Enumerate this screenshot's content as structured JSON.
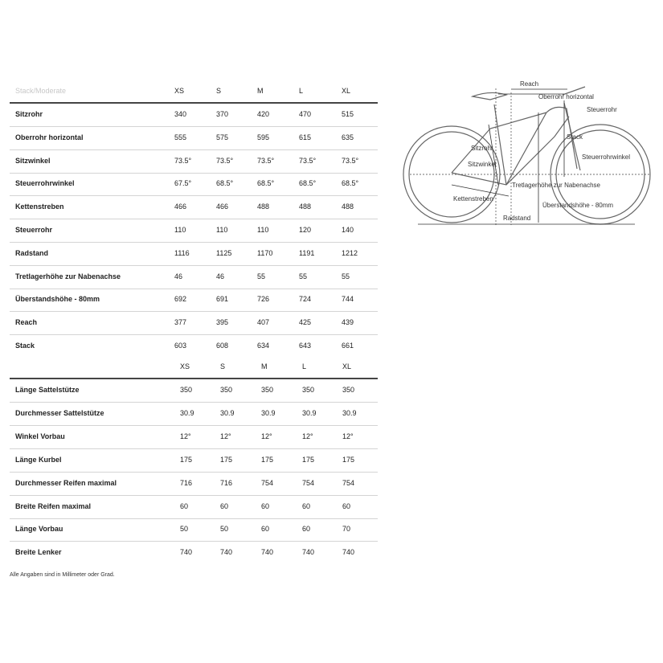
{
  "table1": {
    "corner_label": "Stack/Moderate",
    "sizes": [
      "XS",
      "S",
      "M",
      "L",
      "XL"
    ],
    "rows": [
      {
        "label": "Sitzrohr",
        "values": [
          "340",
          "370",
          "420",
          "470",
          "515"
        ]
      },
      {
        "label": "Oberrohr horizontal",
        "values": [
          "555",
          "575",
          "595",
          "615",
          "635"
        ]
      },
      {
        "label": "Sitzwinkel",
        "values": [
          "73.5°",
          "73.5°",
          "73.5°",
          "73.5°",
          "73.5°"
        ]
      },
      {
        "label": "Steuerrohrwinkel",
        "values": [
          "67.5°",
          "68.5°",
          "68.5°",
          "68.5°",
          "68.5°"
        ]
      },
      {
        "label": "Kettenstreben",
        "values": [
          "466",
          "466",
          "488",
          "488",
          "488"
        ]
      },
      {
        "label": "Steuerrohr",
        "values": [
          "110",
          "110",
          "110",
          "120",
          "140"
        ]
      },
      {
        "label": "Radstand",
        "values": [
          "1116",
          "1125",
          "1170",
          "1191",
          "1212"
        ]
      },
      {
        "label": "Tretlagerhöhe zur Nabenachse",
        "values": [
          "46",
          "46",
          "55",
          "55",
          "55"
        ]
      },
      {
        "label": "Überstandshöhe - 80mm",
        "values": [
          "692",
          "691",
          "726",
          "724",
          "744"
        ]
      },
      {
        "label": "Reach",
        "values": [
          "377",
          "395",
          "407",
          "425",
          "439"
        ]
      },
      {
        "label": "Stack",
        "values": [
          "603",
          "608",
          "634",
          "643",
          "661"
        ]
      }
    ]
  },
  "table2": {
    "sizes": [
      "XS",
      "S",
      "M",
      "L",
      "XL"
    ],
    "rows": [
      {
        "label": "Länge Sattelstütze",
        "values": [
          "350",
          "350",
          "350",
          "350",
          "350"
        ]
      },
      {
        "label": "Durchmesser Sattelstütze",
        "values": [
          "30.9",
          "30.9",
          "30.9",
          "30.9",
          "30.9"
        ]
      },
      {
        "label": "Winkel Vorbau",
        "values": [
          "12°",
          "12°",
          "12°",
          "12°",
          "12°"
        ]
      },
      {
        "label": "Länge Kurbel",
        "values": [
          "175",
          "175",
          "175",
          "175",
          "175"
        ]
      },
      {
        "label": "Durchmesser Reifen maximal",
        "values": [
          "716",
          "716",
          "754",
          "754",
          "754"
        ]
      },
      {
        "label": "Breite Reifen maximal",
        "values": [
          "60",
          "60",
          "60",
          "60",
          "60"
        ]
      },
      {
        "label": "Länge Vorbau",
        "values": [
          "50",
          "50",
          "60",
          "60",
          "70"
        ]
      },
      {
        "label": "Breite Lenker",
        "values": [
          "740",
          "740",
          "740",
          "740",
          "740"
        ]
      }
    ]
  },
  "footnote": "Alle Angaben sind in Millimeter oder Grad.",
  "diagram": {
    "labels": {
      "reach": "Reach",
      "oberrohr": "Oberrohr horizontal",
      "steuerrohr": "Steuerrohr",
      "stack": "Stack",
      "sitzrohr": "Sitzrohr",
      "steuerrohrwinkel": "Steuerrohrwinkel",
      "sitzwinkel": "Sitzwinkel",
      "tretlager": "Tretlagerhöhe zur Nabenachse",
      "kettenstreben": "Kettenstreben",
      "ueberstand": "Überstandshöhe - 80mm",
      "radstand": "Radstand"
    }
  }
}
